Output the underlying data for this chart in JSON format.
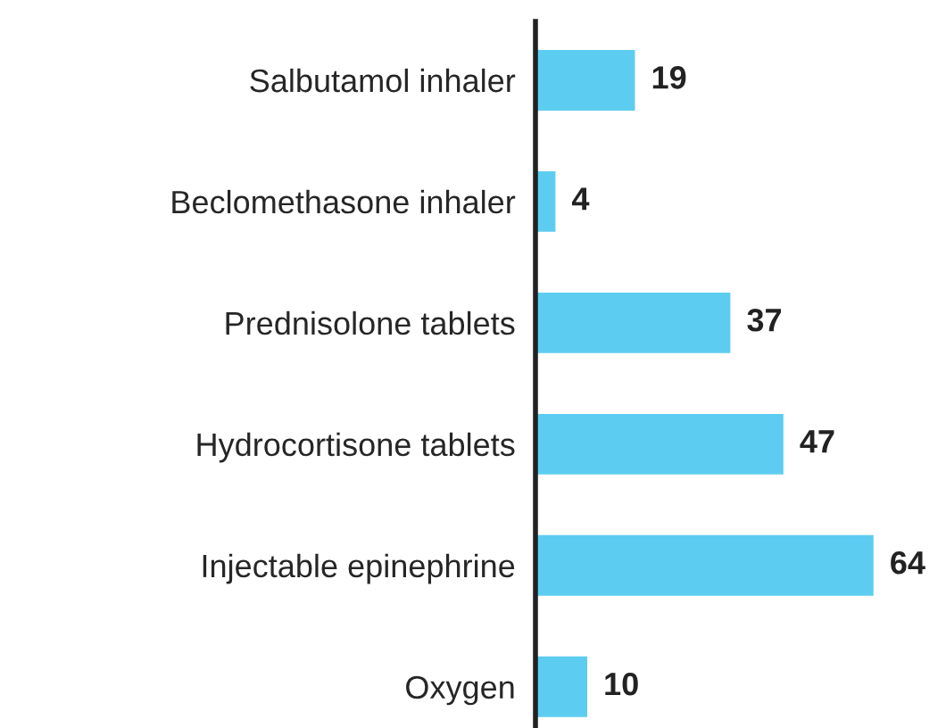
{
  "chart_data": {
    "type": "bar",
    "orientation": "horizontal",
    "categories": [
      "Salbutamol inhaler",
      "Beclomethasone inhaler",
      "Prednisolone tablets",
      "Hydrocortisone tablets",
      "Injectable epinephrine",
      "Oxygen"
    ],
    "values": [
      19,
      4,
      37,
      47,
      64,
      10
    ],
    "color": "#5ccdf0",
    "data_labels": true,
    "grid": false,
    "legend": false
  }
}
